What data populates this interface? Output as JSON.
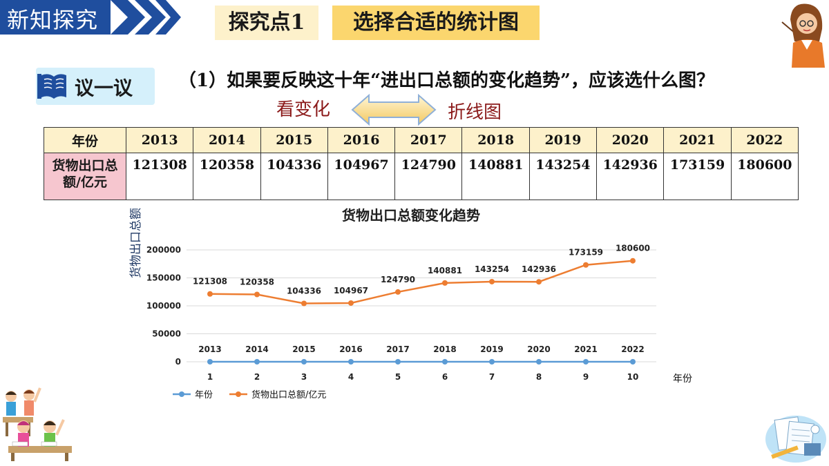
{
  "header": {
    "section_label": "新知探究",
    "tag_point": "探究点1",
    "tag_title": "选择合适的统计图"
  },
  "discuss": {
    "label": "议一议",
    "question": "（1）如果要反映这十年“进出口总额的变化趋势”，应该选什么图？"
  },
  "arrow_labels": {
    "left": "看变化",
    "right": "折线图"
  },
  "table": {
    "row1_header": "年份",
    "row2_header": "货物出口总额/亿元",
    "years": [
      "2013",
      "2014",
      "2015",
      "2016",
      "2017",
      "2018",
      "2019",
      "2020",
      "2021",
      "2022"
    ],
    "values": [
      "121308",
      "120358",
      "104336",
      "104967",
      "124790",
      "140881",
      "143254",
      "142936",
      "173159",
      "180600"
    ]
  },
  "colors": {
    "accent_blue": "#1f4e9e",
    "line_blue": "#5b9bd5",
    "line_orange": "#ed7d31",
    "axis_text": "#1f3864",
    "tag_light": "#fdf1cb",
    "tag_dark": "#fbd66e",
    "row_pink": "#f6c6cf"
  },
  "icons": [
    "book-icon",
    "double-arrow-icon",
    "teacher-illustration",
    "students-illustration",
    "math-stationery-illustration"
  ],
  "chart_data": {
    "type": "line",
    "title": "货物出口总额变化趋势",
    "ylabel": "货物出口总额",
    "xlabel": "年份",
    "ylim": [
      0,
      200000
    ],
    "yticks": [
      0,
      50000,
      100000,
      150000,
      200000
    ],
    "categories": [
      "1",
      "2",
      "3",
      "4",
      "5",
      "6",
      "7",
      "8",
      "9",
      "10"
    ],
    "series": [
      {
        "name": "年份",
        "values": [
          2013,
          2014,
          2015,
          2016,
          2017,
          2018,
          2019,
          2020,
          2021,
          2022
        ],
        "color": "#5b9bd5",
        "plotted_values": [
          0,
          0,
          0,
          0,
          0,
          0,
          0,
          0,
          0,
          0
        ]
      },
      {
        "name": "货物出口总额/亿元",
        "values": [
          121308,
          120358,
          104336,
          104967,
          124790,
          140881,
          143254,
          142936,
          173159,
          180600
        ],
        "color": "#ed7d31"
      }
    ],
    "grid": "horizontal",
    "legend": "bottom-left"
  }
}
